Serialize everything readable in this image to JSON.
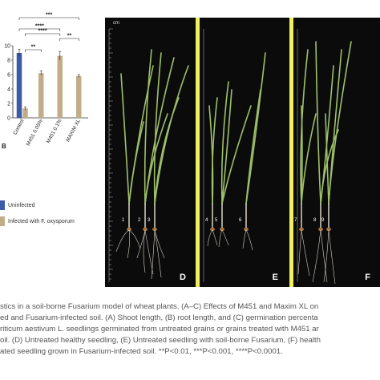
{
  "chart_data": {
    "type": "bar",
    "categories": [
      "Control",
      "M451 0.05%",
      "M451 0.1%",
      "MAXIM XL"
    ],
    "series": [
      {
        "name": "Uninfected",
        "color": "#3d5aa8",
        "values": [
          9.0,
          null,
          null,
          null
        ],
        "errors": [
          0.5,
          null,
          null,
          null
        ]
      },
      {
        "name": "Infected with F. oxysporum",
        "color": "#c2ad88",
        "values": [
          1.3,
          6.2,
          8.6,
          5.8
        ],
        "errors": [
          0.2,
          0.3,
          0.6,
          0.2
        ]
      }
    ],
    "ylim": [
      0,
      10
    ],
    "yticks": [
      0,
      2,
      4,
      6,
      8,
      10
    ],
    "significance": [
      {
        "label": "***"
      },
      {
        "label": "****"
      },
      {
        "label": "****"
      },
      {
        "label": "**"
      },
      {
        "label": "**"
      }
    ],
    "grid": false
  },
  "chart": {
    "panel_letter": "B"
  },
  "legend": {
    "items": [
      {
        "label": "Uninfected",
        "color": "#3d5aa8"
      },
      {
        "label": "Infected with F. oxysporum",
        "color": "#c2ad88"
      }
    ]
  },
  "photos": {
    "cm_label": "cm",
    "panels": [
      {
        "letter": "D",
        "plant_numbers": [
          "1",
          "2",
          "3"
        ]
      },
      {
        "letter": "E",
        "plant_numbers": [
          "4",
          "5",
          "6"
        ]
      },
      {
        "letter": "F",
        "plant_numbers": [
          "7",
          "8",
          "9"
        ]
      }
    ],
    "divider_color": "#f2ef60"
  },
  "caption": {
    "lines": [
      "stics in a soil-borne Fusarium model of wheat plants. (A–C) Effects of M451 and Maxim XL on",
      "ed and Fusarium-infected soil. (A) Shoot length, (B) root length, and (C) germination percenta",
      "riticum aestivum L. seedlings germinated from untreated grains or grains treated with M451 ar",
      "oil. (D) Untreated healthy seedling, (E) Untreated seedling with soil-borne Fusarium, (F) health",
      "ated seedling grown in Fusarium-infected soil. **P<0.01, ***P<0.001, ****P<0.0001."
    ]
  }
}
